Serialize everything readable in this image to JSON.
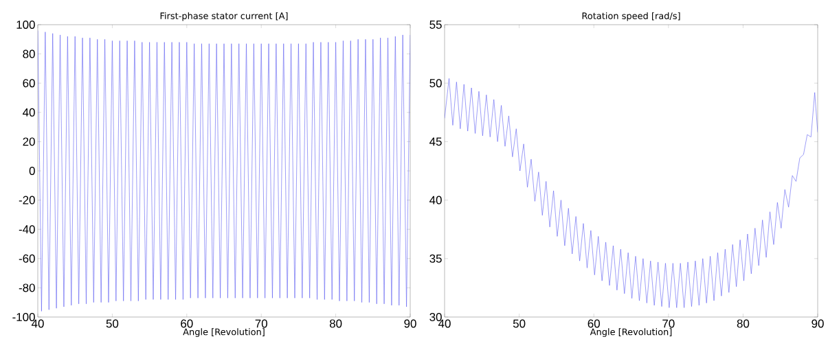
{
  "chart_data": [
    {
      "type": "line",
      "title": "First-phase stator current [A]",
      "xlabel": "Angle [Revolution]",
      "xlim": [
        40,
        90
      ],
      "ylim": [
        -100,
        100
      ],
      "xticks": [
        40,
        50,
        60,
        70,
        80,
        90
      ],
      "yticks": [
        -100,
        -80,
        -60,
        -40,
        -20,
        0,
        20,
        40,
        60,
        80,
        100
      ],
      "x": [
        40,
        40.5,
        41,
        41.5,
        42,
        42.5,
        43,
        43.5,
        44,
        44.5,
        45,
        45.5,
        46,
        46.5,
        47,
        47.5,
        48,
        48.5,
        49,
        49.5,
        50,
        50.5,
        51,
        51.5,
        52,
        52.5,
        53,
        53.5,
        54,
        54.5,
        55,
        55.5,
        56,
        56.5,
        57,
        57.5,
        58,
        58.5,
        59,
        59.5,
        60,
        60.5,
        61,
        61.5,
        62,
        62.5,
        63,
        63.5,
        64,
        64.5,
        65,
        65.5,
        66,
        66.5,
        67,
        67.5,
        68,
        68.5,
        69,
        69.5,
        70,
        70.5,
        71,
        71.5,
        72,
        72.5,
        73,
        73.5,
        74,
        74.5,
        75,
        75.5,
        76,
        76.5,
        77,
        77.5,
        78,
        78.5,
        79,
        79.5,
        80,
        80.5,
        81,
        81.5,
        82,
        82.5,
        83,
        83.5,
        84,
        84.5,
        85,
        85.5,
        86,
        86.5,
        87,
        87.5,
        88,
        88.5,
        89,
        89.5,
        90
      ],
      "series": [
        {
          "color": "#5c5cf2",
          "values": [
            96,
            -96,
            95,
            -95,
            94,
            -94,
            93,
            -93,
            92,
            -92,
            92,
            -91,
            91,
            -91,
            91,
            -90,
            90,
            -90,
            90,
            -90,
            89,
            -89,
            89,
            -89,
            89,
            -89,
            89,
            -89,
            88,
            -88,
            88,
            -88,
            88,
            -88,
            88,
            -88,
            88,
            -88,
            88,
            -88,
            88,
            -87,
            87,
            -87,
            87,
            -87,
            87,
            -87,
            87,
            -87,
            87,
            -87,
            87,
            -87,
            87,
            -87,
            87,
            -87,
            87,
            -87,
            87,
            -87,
            87,
            -87,
            87,
            -87,
            87,
            -87,
            87,
            -87,
            87,
            -87,
            87,
            -87,
            88,
            -88,
            88,
            -88,
            88,
            -88,
            88,
            -89,
            89,
            -89,
            89,
            -89,
            90,
            -90,
            90,
            -90,
            90,
            -91,
            91,
            -91,
            91,
            -92,
            92,
            -92,
            93,
            -93,
            93
          ]
        }
      ]
    },
    {
      "type": "line",
      "title": "Rotation speed [rad/s]",
      "xlabel": "Angle [Revolution]",
      "xlim": [
        40,
        90
      ],
      "ylim": [
        30,
        55
      ],
      "xticks": [
        40,
        50,
        60,
        70,
        80,
        90
      ],
      "yticks": [
        30,
        35,
        40,
        45,
        50,
        55
      ],
      "x": [
        40,
        40.6,
        41.1,
        41.6,
        42.1,
        42.6,
        43.1,
        43.6,
        44.1,
        44.6,
        45.1,
        45.6,
        46.1,
        46.6,
        47.1,
        47.6,
        48.1,
        48.6,
        49.1,
        49.6,
        50.1,
        50.6,
        51.1,
        51.6,
        52.1,
        52.6,
        53.1,
        53.6,
        54.1,
        54.6,
        55.1,
        55.6,
        56.1,
        56.6,
        57.1,
        57.6,
        58.1,
        58.6,
        59.1,
        59.6,
        60.1,
        60.6,
        61.1,
        61.6,
        62.1,
        62.6,
        63.1,
        63.6,
        64.1,
        64.6,
        65.1,
        65.6,
        66.1,
        66.6,
        67.1,
        67.6,
        68.1,
        68.6,
        69.1,
        69.6,
        70.1,
        70.6,
        71.1,
        71.6,
        72.1,
        72.6,
        73.1,
        73.6,
        74.1,
        74.6,
        75.1,
        75.6,
        76.1,
        76.6,
        77.1,
        77.6,
        78.1,
        78.6,
        79.1,
        79.6,
        80.1,
        80.6,
        81.1,
        81.6,
        82.1,
        82.6,
        83.1,
        83.6,
        84.1,
        84.6,
        85.1,
        85.6,
        86.1,
        86.6,
        87.1,
        87.6,
        88.1,
        88.6,
        89.1,
        89.6,
        90
      ],
      "series": [
        {
          "color": "#5c5cf2",
          "values": [
            47,
            50.4,
            46.4,
            50.1,
            46.1,
            49.9,
            45.9,
            49.6,
            45.7,
            49.3,
            45.5,
            49,
            45.4,
            48.6,
            45,
            48.1,
            44.6,
            47.2,
            43.7,
            46.1,
            42.5,
            44.8,
            41.1,
            43.5,
            39.9,
            42.4,
            38.7,
            41.6,
            37.7,
            40.8,
            36.9,
            40,
            36.1,
            39.3,
            35.4,
            38.6,
            34.8,
            38,
            34.2,
            37.4,
            33.6,
            36.9,
            33.1,
            36.4,
            32.7,
            36.1,
            32.3,
            35.8,
            32,
            35.5,
            31.6,
            35.2,
            31.4,
            35,
            31.2,
            34.8,
            31,
            34.7,
            30.9,
            34.6,
            30.8,
            34.6,
            30.8,
            34.6,
            30.8,
            34.7,
            30.9,
            34.8,
            31,
            35,
            31.2,
            35.2,
            31.4,
            35.5,
            31.8,
            35.8,
            32.1,
            36.2,
            32.6,
            36.6,
            33.1,
            37.1,
            33.7,
            37.6,
            34.4,
            38.3,
            35.1,
            39,
            36.2,
            39.8,
            37.6,
            40.9,
            39.4,
            42.1,
            41.6,
            43.6,
            43.9,
            45.6,
            45.4,
            49.2,
            45.8
          ]
        }
      ]
    }
  ]
}
